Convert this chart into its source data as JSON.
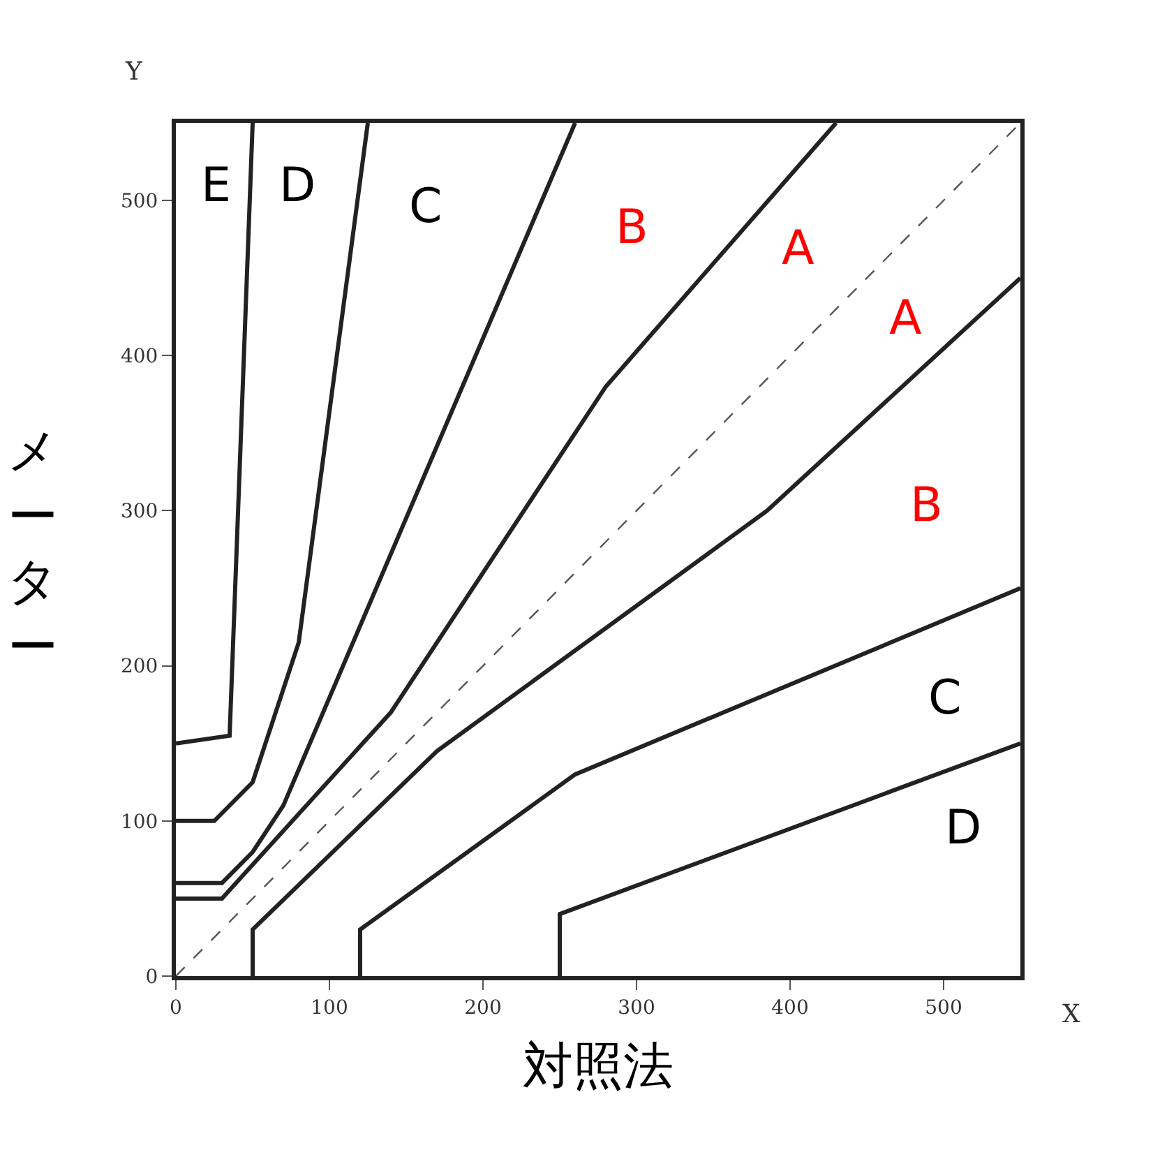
{
  "chart_data": {
    "type": "line",
    "xlabel": "対照法",
    "ylabel": "メーター",
    "xlim": [
      0,
      550
    ],
    "ylim": [
      0,
      550
    ],
    "xticks": [
      0,
      100,
      200,
      300,
      400,
      500
    ],
    "yticks": [
      0,
      100,
      200,
      300,
      400,
      500
    ],
    "grid": false,
    "marker": "none",
    "series": [
      {
        "color": "#222222",
        "x": [
          0,
          30,
          140,
          280,
          430
        ],
        "values": [
          50,
          50,
          170,
          380,
          550
        ]
      },
      {
        "color": "#222222",
        "x": [
          50,
          50,
          170,
          385,
          550
        ],
        "values": [
          0,
          30,
          145,
          300,
          450
        ]
      },
      {
        "color": "#222222",
        "x": [
          0,
          30,
          50,
          70,
          260
        ],
        "values": [
          60,
          60,
          80,
          110,
          550
        ]
      },
      {
        "color": "#222222",
        "x": [
          120,
          120,
          260,
          550
        ],
        "values": [
          0,
          30,
          130,
          250
        ]
      },
      {
        "color": "#222222",
        "x": [
          0,
          25,
          50,
          80,
          125
        ],
        "values": [
          100,
          100,
          125,
          215,
          550
        ]
      },
      {
        "color": "#222222",
        "x": [
          250,
          250,
          550
        ],
        "values": [
          0,
          40,
          150
        ]
      },
      {
        "color": "#222222",
        "x": [
          0,
          35,
          50
        ],
        "values": [
          150,
          155,
          550
        ]
      },
      {
        "color": "#555555",
        "x": [
          0,
          550
        ],
        "values": [
          0,
          550
        ],
        "line_style": "dashed"
      }
    ],
    "annotations": [
      "E",
      "D",
      "C",
      "B",
      "A",
      "A",
      "B",
      "C",
      "D",
      "X",
      "Y"
    ]
  }
}
